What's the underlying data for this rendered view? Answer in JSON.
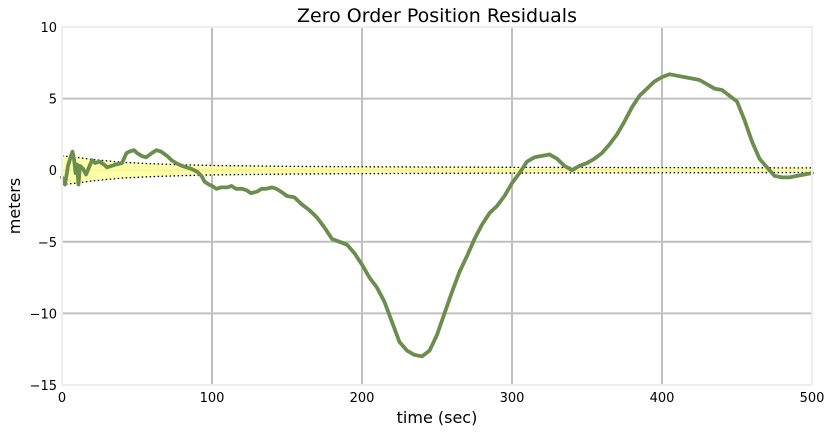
{
  "chart_data": {
    "type": "line",
    "title": "Zero Order Position Residuals",
    "xlabel": "time (sec)",
    "ylabel": "meters",
    "xlim": [
      0,
      500
    ],
    "ylim": [
      -15,
      10
    ],
    "xticks": [
      0,
      100,
      200,
      300,
      400,
      500
    ],
    "yticks": [
      -15,
      -10,
      -5,
      0,
      5,
      10
    ],
    "xtick_labels": [
      "0",
      "100",
      "200",
      "300",
      "400",
      "500"
    ],
    "ytick_labels": [
      "−15",
      "−10",
      "−5",
      "0",
      "5",
      "10"
    ],
    "grid": true,
    "colors": {
      "residual": "#6b8e4e",
      "band_fill": "#ffff99",
      "band_edge": "#000000",
      "grid": "#c0c0c0",
      "frame": "#eeeeee"
    },
    "residual": {
      "x": [
        0,
        2,
        4,
        6,
        7,
        8,
        9,
        10,
        11,
        12,
        14,
        16,
        18,
        20,
        22,
        25,
        28,
        30,
        33,
        36,
        40,
        43,
        45,
        48,
        50,
        53,
        56,
        60,
        63,
        66,
        70,
        73,
        76,
        80,
        83,
        86,
        90,
        93,
        95,
        98,
        100,
        103,
        106,
        110,
        113,
        116,
        120,
        123,
        126,
        130,
        133,
        136,
        140,
        143,
        146,
        150,
        155,
        160,
        165,
        170,
        175,
        180,
        185,
        190,
        195,
        200,
        205,
        210,
        215,
        220,
        225,
        230,
        235,
        240,
        245,
        250,
        255,
        260,
        265,
        270,
        275,
        280,
        285,
        290,
        295,
        300,
        305,
        310,
        315,
        320,
        325,
        330,
        335,
        340,
        345,
        350,
        355,
        360,
        365,
        370,
        375,
        380,
        385,
        390,
        395,
        400,
        405,
        410,
        415,
        420,
        425,
        430,
        435,
        440,
        445,
        450,
        455,
        460,
        465,
        470,
        475,
        480,
        485,
        490,
        495,
        500
      ],
      "y": [
        -0.5,
        -1.0,
        0.3,
        1.0,
        1.3,
        0.8,
        -0.2,
        0.4,
        -1.0,
        0.3,
        0.1,
        -0.3,
        0.2,
        0.7,
        0.5,
        0.6,
        0.4,
        0.2,
        0.3,
        0.4,
        0.5,
        1.2,
        1.3,
        1.4,
        1.2,
        1.0,
        0.9,
        1.2,
        1.4,
        1.3,
        1.0,
        0.7,
        0.5,
        0.3,
        0.2,
        0.1,
        -0.1,
        -0.4,
        -0.8,
        -1.0,
        -1.1,
        -1.3,
        -1.2,
        -1.2,
        -1.1,
        -1.3,
        -1.3,
        -1.4,
        -1.6,
        -1.5,
        -1.3,
        -1.3,
        -1.2,
        -1.3,
        -1.5,
        -1.8,
        -1.9,
        -2.4,
        -2.8,
        -3.3,
        -4.0,
        -4.8,
        -5.0,
        -5.2,
        -5.8,
        -6.6,
        -7.5,
        -8.2,
        -9.2,
        -10.6,
        -12.0,
        -12.6,
        -12.9,
        -13.0,
        -12.6,
        -11.5,
        -10.0,
        -8.5,
        -7.1,
        -6.0,
        -4.8,
        -3.8,
        -3.0,
        -2.5,
        -1.8,
        -0.9,
        -0.2,
        0.6,
        0.9,
        1.0,
        1.1,
        0.8,
        0.3,
        0.0,
        0.3,
        0.5,
        0.8,
        1.2,
        1.8,
        2.5,
        3.4,
        4.4,
        5.2,
        5.7,
        6.2,
        6.5,
        6.7,
        6.6,
        6.5,
        6.4,
        6.3,
        6.0,
        5.7,
        5.6,
        5.2,
        4.8,
        3.5,
        2.0,
        0.8,
        0.2,
        -0.4,
        -0.5,
        -0.5,
        -0.4,
        -0.3,
        -0.2
      ]
    },
    "std_band": {
      "x": [
        0,
        10,
        20,
        40,
        60,
        80,
        100,
        150,
        200,
        250,
        300,
        350,
        400,
        450,
        500
      ],
      "upper": [
        1.0,
        0.9,
        0.75,
        0.55,
        0.45,
        0.38,
        0.33,
        0.27,
        0.24,
        0.22,
        0.2,
        0.19,
        0.18,
        0.17,
        0.16
      ],
      "lower": [
        -1.0,
        -0.9,
        -0.75,
        -0.55,
        -0.45,
        -0.38,
        -0.33,
        -0.27,
        -0.24,
        -0.22,
        -0.2,
        -0.19,
        -0.18,
        -0.17,
        -0.16
      ]
    }
  }
}
